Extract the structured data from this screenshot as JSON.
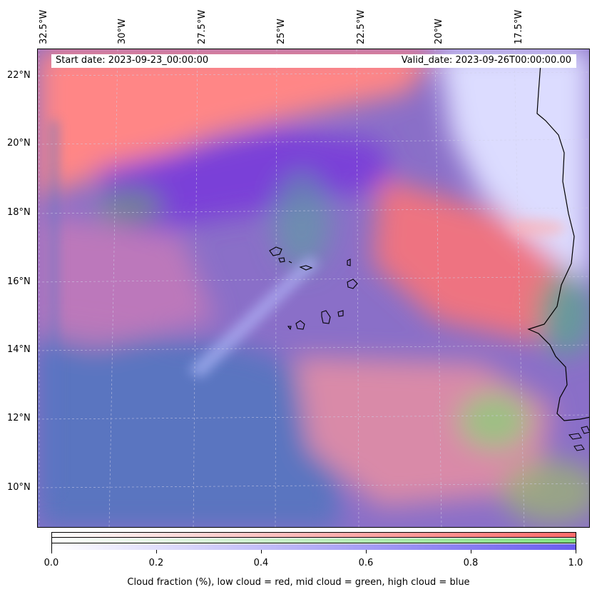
{
  "map": {
    "start_date": "Start date: 2023-09-23_00:00:00",
    "valid_date": "Valid_date: 2023-09-26T00:00:00.00",
    "lon_labels": [
      "32.5°W",
      "30°W",
      "27.5°W",
      "25°W",
      "22.5°W",
      "20°W",
      "17.5°W"
    ],
    "lat_labels": [
      "22°N",
      "20°N",
      "18°N",
      "16°N",
      "14°N",
      "12°N",
      "10°N"
    ],
    "colors": {
      "low_cloud": "#ff6b6b",
      "mid_cloud": "#7ee07e",
      "high_cloud": "#6a5cf0",
      "coastline": "#000000"
    }
  },
  "colorbar": {
    "ticks": [
      "0.0",
      "0.2",
      "0.4",
      "0.6",
      "0.8",
      "1.0"
    ],
    "title": "Cloud fraction (%), low cloud = red, mid cloud = green, high cloud = blue"
  }
}
